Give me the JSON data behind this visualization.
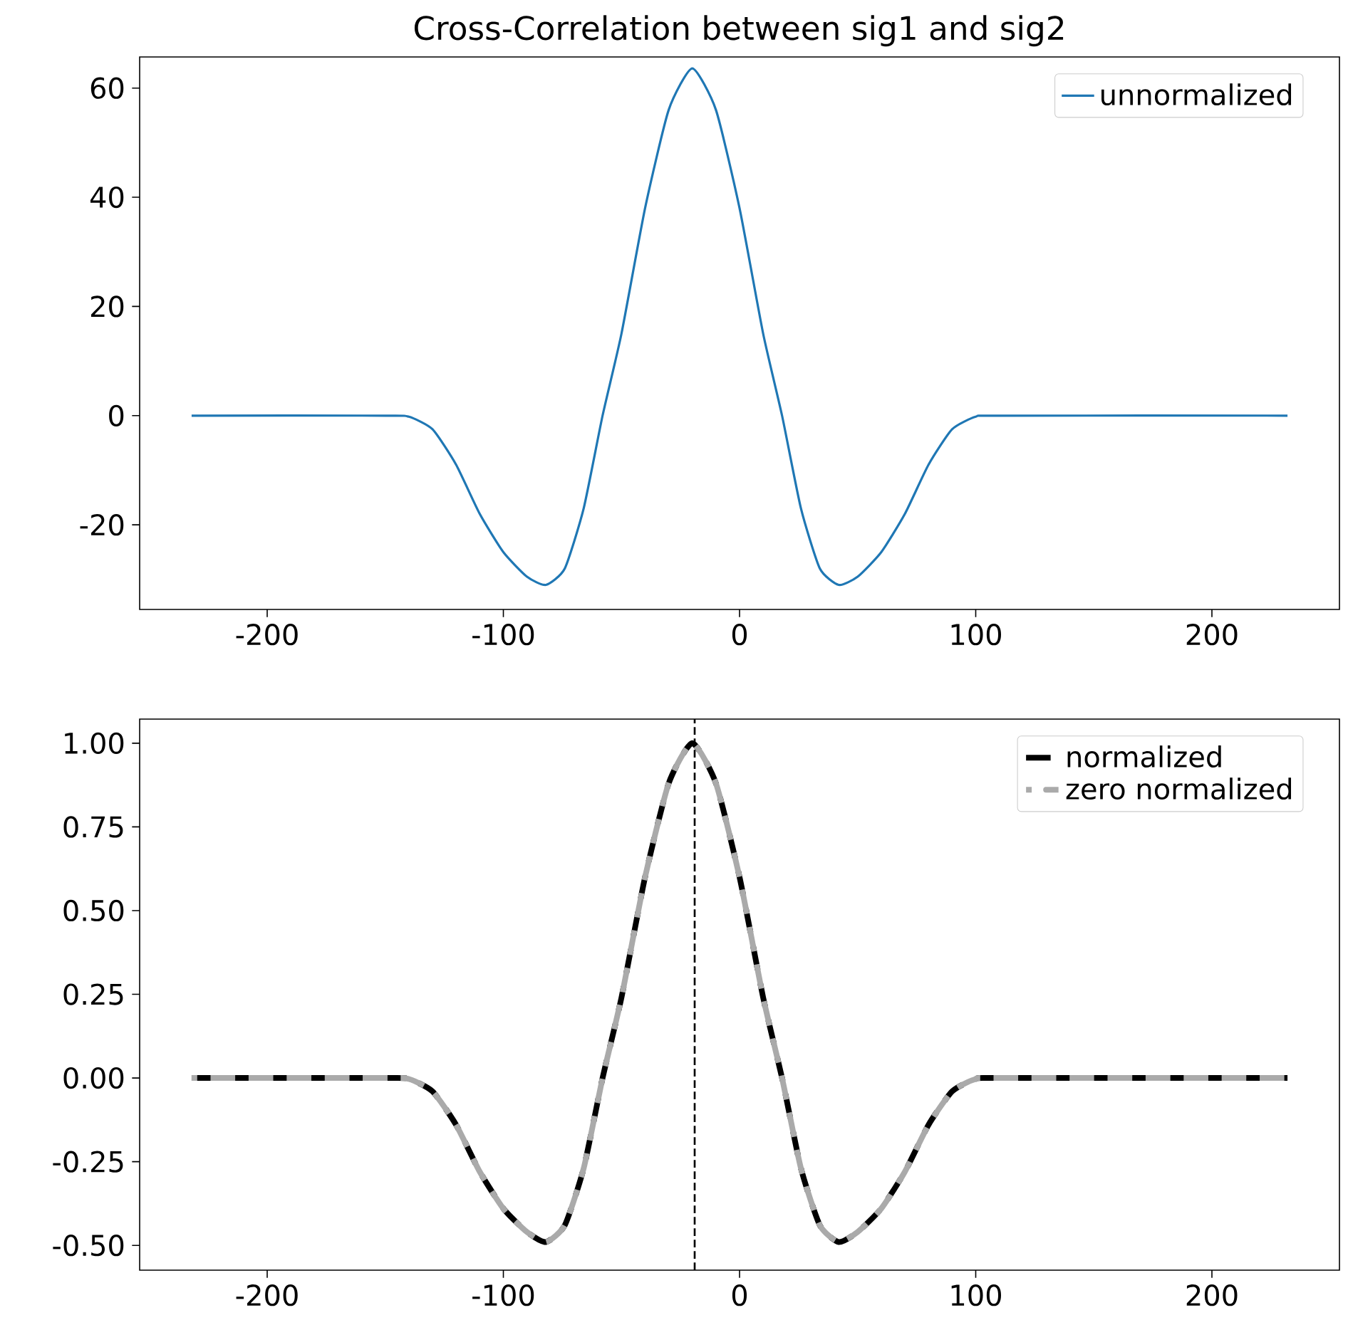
{
  "chart_data": [
    {
      "type": "line",
      "title": "Cross-Correlation between sig1 and sig2",
      "x": [
        -232,
        -150,
        -140,
        -130,
        -120,
        -110,
        -100,
        -90,
        -82,
        -74,
        -66,
        -58,
        -50,
        -40,
        -30,
        -20,
        -10,
        0,
        10,
        18,
        26,
        34,
        42,
        50,
        60,
        70,
        80,
        90,
        100,
        110,
        232
      ],
      "series": [
        {
          "name": "unnormalized",
          "color": "#1f77b4",
          "line_style": "solid",
          "values": [
            0,
            0,
            -0.2,
            -2.5,
            -9,
            -18,
            -25,
            -29.5,
            -31,
            -28,
            -17,
            0,
            15,
            38,
            56,
            63.6,
            56,
            38,
            15,
            0,
            -17,
            -28,
            -31,
            -29.5,
            -25,
            -18,
            -9,
            -2.5,
            -0.2,
            0,
            0
          ]
        }
      ],
      "xlim": [
        -254,
        254
      ],
      "ylim": [
        -35.5,
        65.7
      ],
      "xticks": [
        -200,
        -100,
        0,
        100,
        200
      ],
      "yticks": [
        -20,
        0,
        20,
        40,
        60
      ],
      "legend": "top right",
      "marker": "none"
    },
    {
      "type": "line",
      "x": [
        -232,
        -150,
        -140,
        -130,
        -120,
        -110,
        -100,
        -90,
        -82,
        -74,
        -66,
        -58,
        -50,
        -40,
        -30,
        -20,
        -10,
        0,
        10,
        18,
        26,
        34,
        42,
        50,
        60,
        70,
        80,
        90,
        100,
        110,
        232
      ],
      "series": [
        {
          "name": "normalized",
          "color": "#000000",
          "line_style": "dashed",
          "values": [
            0,
            0,
            -0.003,
            -0.04,
            -0.14,
            -0.28,
            -0.39,
            -0.46,
            -0.49,
            -0.44,
            -0.27,
            0,
            0.24,
            0.6,
            0.88,
            1.0,
            0.88,
            0.6,
            0.24,
            0,
            -0.27,
            -0.44,
            -0.49,
            -0.46,
            -0.39,
            -0.28,
            -0.14,
            -0.04,
            -0.003,
            0,
            0
          ]
        },
        {
          "name": "zero normalized",
          "color": "#aaaaaa",
          "line_style": "dashed",
          "values": [
            0,
            0,
            -0.003,
            -0.04,
            -0.14,
            -0.28,
            -0.39,
            -0.46,
            -0.49,
            -0.44,
            -0.27,
            0,
            0.24,
            0.6,
            0.88,
            1.0,
            0.88,
            0.6,
            0.24,
            0,
            -0.27,
            -0.44,
            -0.49,
            -0.46,
            -0.39,
            -0.28,
            -0.14,
            -0.04,
            -0.003,
            0,
            0
          ]
        }
      ],
      "ref_lines": [
        {
          "axis": "x",
          "value": -19,
          "color": "#000000",
          "line_style": "dashed"
        }
      ],
      "xlim": [
        -254,
        254
      ],
      "ylim": [
        -0.574,
        1.072
      ],
      "xticks": [
        -200,
        -100,
        0,
        100,
        200
      ],
      "yticks": [
        {
          "value": -0.5,
          "label": "-0.50"
        },
        {
          "value": -0.25,
          "label": "-0.25"
        },
        {
          "value": 0,
          "label": "0.00"
        },
        {
          "value": 0.25,
          "label": "0.25"
        },
        {
          "value": 0.5,
          "label": "0.50"
        },
        {
          "value": 0.75,
          "label": "0.75"
        },
        {
          "value": 1.0,
          "label": "1.00"
        }
      ],
      "legend": "top right",
      "marker": "none"
    }
  ]
}
